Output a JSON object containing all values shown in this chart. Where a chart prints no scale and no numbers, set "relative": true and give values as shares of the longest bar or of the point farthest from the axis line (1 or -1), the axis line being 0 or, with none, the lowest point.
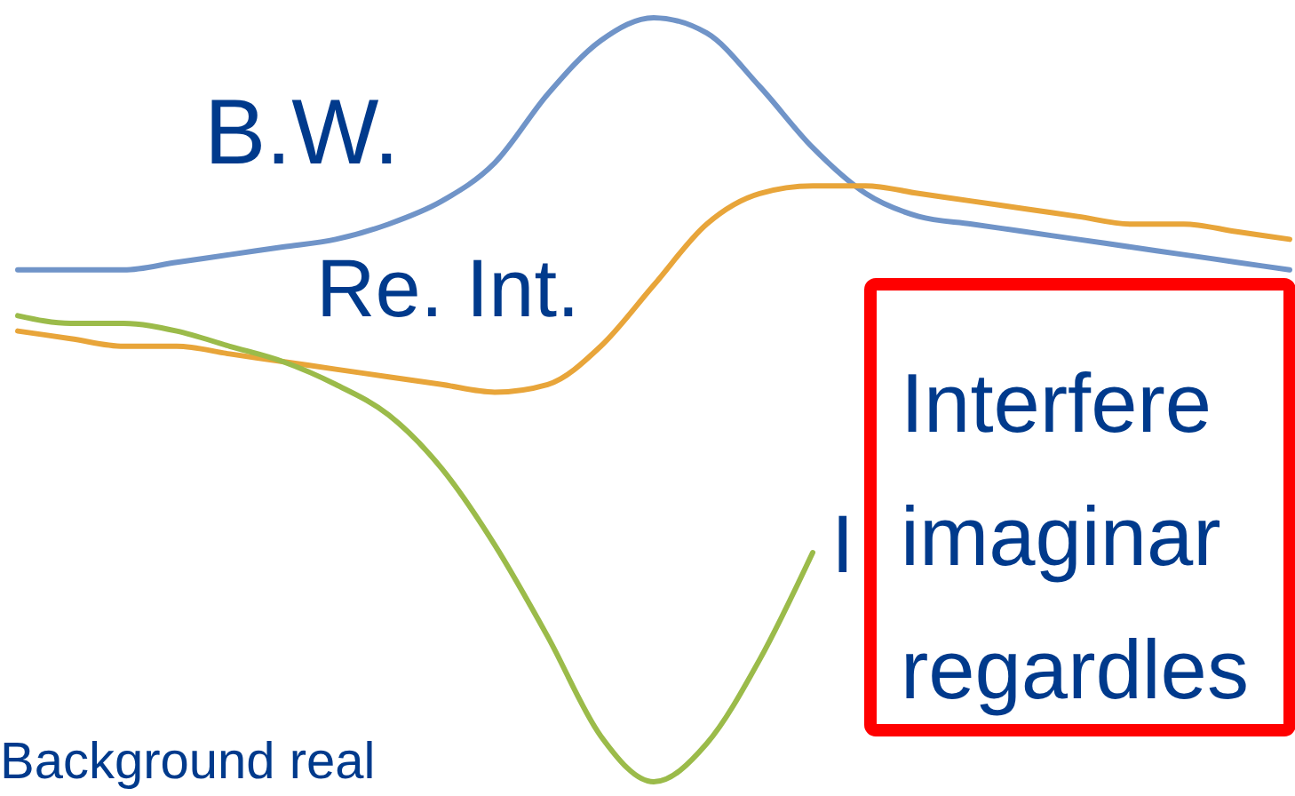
{
  "chart_data": {
    "type": "line",
    "relative": true,
    "marker": "none",
    "line_style": "solid",
    "categories": [
      null,
      null,
      null,
      null,
      null,
      null,
      null,
      null,
      null,
      null,
      null,
      null,
      null,
      null,
      null,
      null,
      null,
      null,
      null,
      null,
      null,
      null,
      null,
      null,
      null
    ],
    "series": [
      {
        "name": "B.W.",
        "color": "#7094c8",
        "values": [
          0.67,
          0.67,
          0.67,
          0.68,
          0.69,
          0.7,
          0.71,
          0.73,
          0.76,
          0.81,
          0.9,
          0.97,
          1,
          0.98,
          0.91,
          0.83,
          0.77,
          0.74,
          0.73,
          0.72,
          0.71,
          0.7,
          0.69,
          0.68,
          0.67
        ]
      },
      {
        "name": "Re. Int.",
        "color": "#e8a53a",
        "values": [
          0.59,
          0.58,
          0.57,
          0.57,
          0.56,
          0.55,
          0.54,
          0.53,
          0.52,
          0.51,
          0.52,
          0.57,
          0.65,
          0.73,
          0.77,
          0.78,
          0.78,
          0.77,
          0.76,
          0.75,
          0.74,
          0.73,
          0.73,
          0.72,
          0.71
        ]
      },
      {
        "color": "#9bbb4a",
        "values": [
          0.61,
          0.6,
          0.6,
          0.59,
          0.57,
          0.55,
          0.52,
          0.48,
          0.41,
          0.31,
          0.19,
          0.06,
          0,
          0.05,
          0.16,
          0.3,
          null,
          null,
          null,
          null,
          null,
          null,
          null,
          null,
          null
        ]
      }
    ],
    "annotations": [
      "Background real",
      "I",
      "Interfere",
      "imaginar",
      "regardles"
    ]
  }
}
